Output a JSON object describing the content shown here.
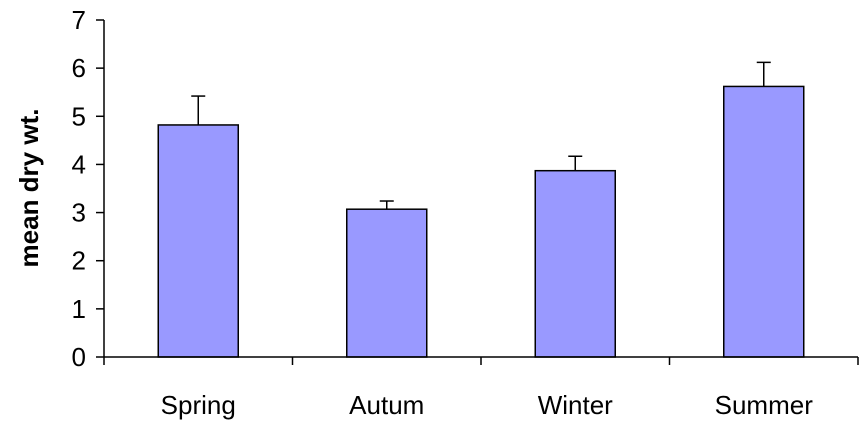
{
  "chart_data": {
    "type": "bar",
    "title": "",
    "xlabel": "",
    "ylabel": "mean dry wt.",
    "categories": [
      "Spring",
      "Autum",
      "Winter",
      "Summer"
    ],
    "values": [
      4.82,
      3.07,
      3.87,
      5.62
    ],
    "error_plus": [
      0.6,
      0.17,
      0.3,
      0.5
    ],
    "ylim": [
      0,
      7
    ],
    "yticks": [
      "0",
      "1",
      "2",
      "3",
      "4",
      "5",
      "6",
      "7"
    ],
    "grid": false,
    "legend": "none",
    "bar_color": "#9999ff",
    "bar_stroke_color": "#000000"
  }
}
